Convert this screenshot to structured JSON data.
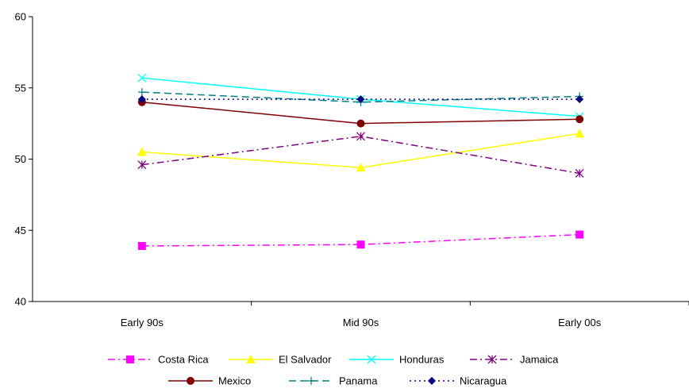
{
  "chart_data": {
    "type": "line",
    "title": "",
    "xlabel": "",
    "ylabel": "",
    "categories": [
      "Early 90s",
      "Mid 90s",
      "Early 00s"
    ],
    "ylim": [
      40,
      60
    ],
    "yticks": [
      40,
      45,
      50,
      55,
      60
    ],
    "grid": false,
    "legend_position": "bottom",
    "series": [
      {
        "name": "Costa Rica",
        "values": [
          43.9,
          44.0,
          44.7
        ],
        "color": "#FF00FF",
        "dash": "dash-dot",
        "marker": "square"
      },
      {
        "name": "El Salvador",
        "values": [
          50.5,
          49.4,
          51.8
        ],
        "color": "#FFFF00",
        "dash": "solid",
        "marker": "triangle"
      },
      {
        "name": "Honduras",
        "values": [
          55.7,
          54.2,
          53.0
        ],
        "color": "#00FFFF",
        "dash": "solid",
        "marker": "x"
      },
      {
        "name": "Jamaica",
        "values": [
          49.6,
          51.6,
          49.0
        ],
        "color": "#800080",
        "dash": "dash-dot",
        "marker": "star"
      },
      {
        "name": "Mexico",
        "values": [
          54.0,
          52.5,
          52.8
        ],
        "color": "#800000",
        "dash": "solid",
        "marker": "circle"
      },
      {
        "name": "Panama",
        "values": [
          54.7,
          54.0,
          54.4
        ],
        "color": "#008080",
        "dash": "dash",
        "marker": "plus"
      },
      {
        "name": "Nicaragua",
        "values": [
          54.2,
          54.2,
          54.2
        ],
        "color": "#000080",
        "dash": "dot",
        "marker": "diamond"
      }
    ]
  }
}
